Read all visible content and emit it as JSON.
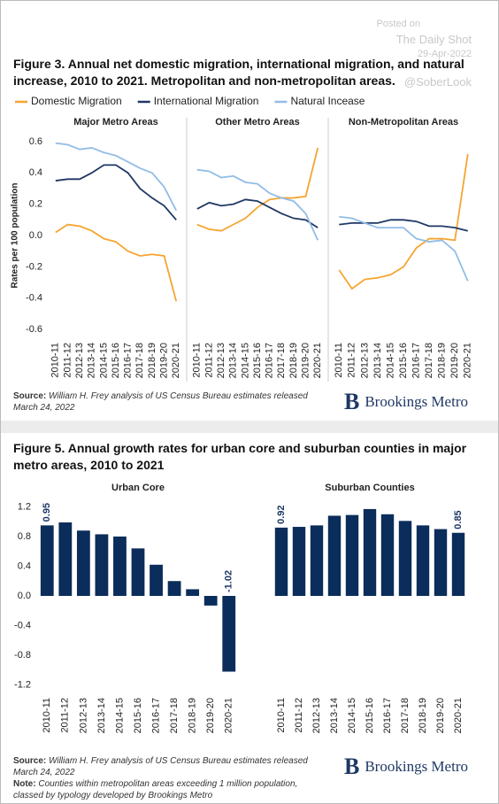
{
  "watermark": [
    "Posted on",
    "The Daily Shot",
    "29-Apr-2022",
    "@SoberLook"
  ],
  "figure3": {
    "title": "Figure 3. Annual net domestic migration, international migration, and natural increase, 2010 to 2021. Metropolitan and non-metropolitan areas.",
    "source_label": "Source:",
    "source": "William H. Frey analysis of US Census Bureau estimates released March 24, 2022",
    "brand": "Brookings Metro"
  },
  "figure5": {
    "title": "Figure 5. Annual growth rates for urban core and suburban counties in major metro areas, 2010 to 2021",
    "source_label": "Source:",
    "source": "William H. Frey analysis of US Census Bureau estimates released March 24, 2022",
    "note_label": "Note:",
    "note": "Counties within metropolitan areas exceeding 1 million population, classed by typology developed by Brookings Metro",
    "brand": "Brookings Metro"
  },
  "chart_data": [
    {
      "type": "line",
      "title": "Major Metro Areas",
      "y_label": "Rates per 100 population",
      "categories": [
        "2010-11",
        "2011-12",
        "2012-13",
        "2013-14",
        "2014-15",
        "2015-16",
        "2016-17",
        "2017-18",
        "2018-19",
        "2019-20",
        "2020-21"
      ],
      "series": [
        {
          "name": "Domestic Migration",
          "color": "#f5a531",
          "values": [
            0.02,
            0.07,
            0.06,
            0.03,
            -0.02,
            -0.04,
            -0.1,
            -0.13,
            -0.12,
            -0.13,
            -0.42
          ]
        },
        {
          "name": "International Migration",
          "color": "#1f3864",
          "values": [
            0.35,
            0.36,
            0.36,
            0.4,
            0.45,
            0.45,
            0.4,
            0.3,
            0.24,
            0.19,
            0.1
          ]
        },
        {
          "name": "Natural Incease",
          "color": "#92bde6",
          "values": [
            0.59,
            0.58,
            0.55,
            0.56,
            0.53,
            0.51,
            0.47,
            0.43,
            0.4,
            0.31,
            0.16
          ]
        }
      ],
      "ylim": [
        -0.65,
        0.65
      ],
      "yticks": [
        0.6,
        0.4,
        0.2,
        {
          "value": 0,
          "label": "0.0"
        },
        -0.2,
        -0.4,
        -0.6
      ]
    },
    {
      "type": "line",
      "title": "Other Metro Areas",
      "categories": [
        "2010-11",
        "2011-12",
        "2012-13",
        "2013-14",
        "2014-15",
        "2015-16",
        "2016-17",
        "2017-18",
        "2018-19",
        "2019-20",
        "2020-21"
      ],
      "series": [
        {
          "color": "#f5a531",
          "values": [
            0.07,
            0.04,
            0.03,
            0.07,
            0.11,
            0.18,
            0.23,
            0.24,
            0.24,
            0.25,
            0.56
          ]
        },
        {
          "color": "#1f3864",
          "values": [
            0.17,
            0.21,
            0.19,
            0.2,
            0.23,
            0.22,
            0.18,
            0.14,
            0.11,
            0.1,
            0.05
          ]
        },
        {
          "color": "#92bde6",
          "values": [
            0.42,
            0.41,
            0.37,
            0.38,
            0.34,
            0.33,
            0.27,
            0.24,
            0.22,
            0.14,
            -0.03
          ]
        }
      ],
      "ylim": [
        -0.65,
        0.65
      ]
    },
    {
      "type": "line",
      "title": "Non-Metropolitan Areas",
      "categories": [
        "2010-11",
        "2011-12",
        "2012-13",
        "2013-14",
        "2014-15",
        "2015-16",
        "2016-17",
        "2017-18",
        "2018-19",
        "2019-20",
        "2020-21"
      ],
      "series": [
        {
          "color": "#f5a531",
          "values": [
            -0.22,
            -0.34,
            -0.28,
            -0.27,
            -0.25,
            -0.2,
            -0.08,
            -0.02,
            -0.02,
            -0.03,
            0.52
          ]
        },
        {
          "color": "#1f3864",
          "values": [
            0.07,
            0.08,
            0.08,
            0.08,
            0.1,
            0.1,
            0.09,
            0.06,
            0.06,
            0.05,
            0.03
          ]
        },
        {
          "color": "#92bde6",
          "values": [
            0.12,
            0.11,
            0.08,
            0.05,
            0.05,
            0.05,
            -0.02,
            -0.04,
            -0.03,
            -0.1,
            -0.29
          ]
        }
      ],
      "ylim": [
        -0.65,
        0.65
      ]
    },
    {
      "type": "bar",
      "title": "Urban Core",
      "color": "#0b2d5b",
      "categories": [
        "2010-11",
        "2011-12",
        "2012-13",
        "2013-14",
        "2014-15",
        "2015-16",
        "2016-17",
        "2017-18",
        "2018-19",
        "2019-20",
        "2020-21"
      ],
      "values": [
        0.95,
        0.99,
        0.88,
        0.83,
        0.8,
        0.64,
        0.42,
        0.2,
        0.09,
        -0.13,
        -1.02
      ],
      "value_labels": [
        "0.95",
        null,
        null,
        null,
        null,
        null,
        null,
        null,
        null,
        null,
        "-1.02"
      ],
      "ylim": [
        -1.3,
        1.3
      ],
      "yticks": [
        1.2,
        0.8,
        0.4,
        {
          "value": 0,
          "label": "0.0"
        },
        -0.4,
        -0.8,
        -1.2
      ]
    },
    {
      "type": "bar",
      "title": "Suburban Counties",
      "color": "#0b2d5b",
      "categories": [
        "2010-11",
        "2011-12",
        "2012-13",
        "2013-14",
        "2014-15",
        "2015-16",
        "2016-17",
        "2017-18",
        "2018-19",
        "2019-20",
        "2020-21"
      ],
      "values": [
        0.92,
        0.93,
        0.95,
        1.08,
        1.09,
        1.17,
        1.1,
        1.01,
        0.95,
        0.9,
        0.85
      ],
      "value_labels": [
        "0.92",
        null,
        null,
        null,
        null,
        null,
        null,
        null,
        null,
        null,
        "0.85"
      ],
      "ylim": [
        -1.3,
        1.3
      ]
    }
  ]
}
